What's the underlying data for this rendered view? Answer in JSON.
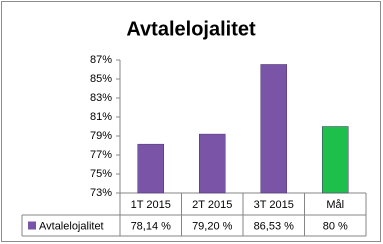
{
  "chart_data": {
    "type": "bar",
    "title": "Avtalelojalitet",
    "categories": [
      "1T 2015",
      "2T 2015",
      "3T 2015",
      "Mål"
    ],
    "series": [
      {
        "name": "Avtalelojalitet",
        "colors": [
          "#7a54a6",
          "#7a54a6",
          "#7a54a6",
          "#1fbf4c"
        ],
        "values": [
          78.14,
          79.2,
          86.53,
          80
        ],
        "value_labels": [
          "78,14 %",
          "79,20 %",
          "86,53 %",
          "80 %"
        ]
      }
    ],
    "ylim": [
      73,
      87
    ],
    "yticks": [
      {
        "value": 73,
        "label": "73%"
      },
      {
        "value": 75,
        "label": "75%"
      },
      {
        "value": 77,
        "label": "77%"
      },
      {
        "value": 79,
        "label": "79%"
      },
      {
        "value": 81,
        "label": "81%"
      },
      {
        "value": 83,
        "label": "83%"
      },
      {
        "value": 85,
        "label": "85%"
      },
      {
        "value": 87,
        "label": "87%"
      }
    ]
  }
}
